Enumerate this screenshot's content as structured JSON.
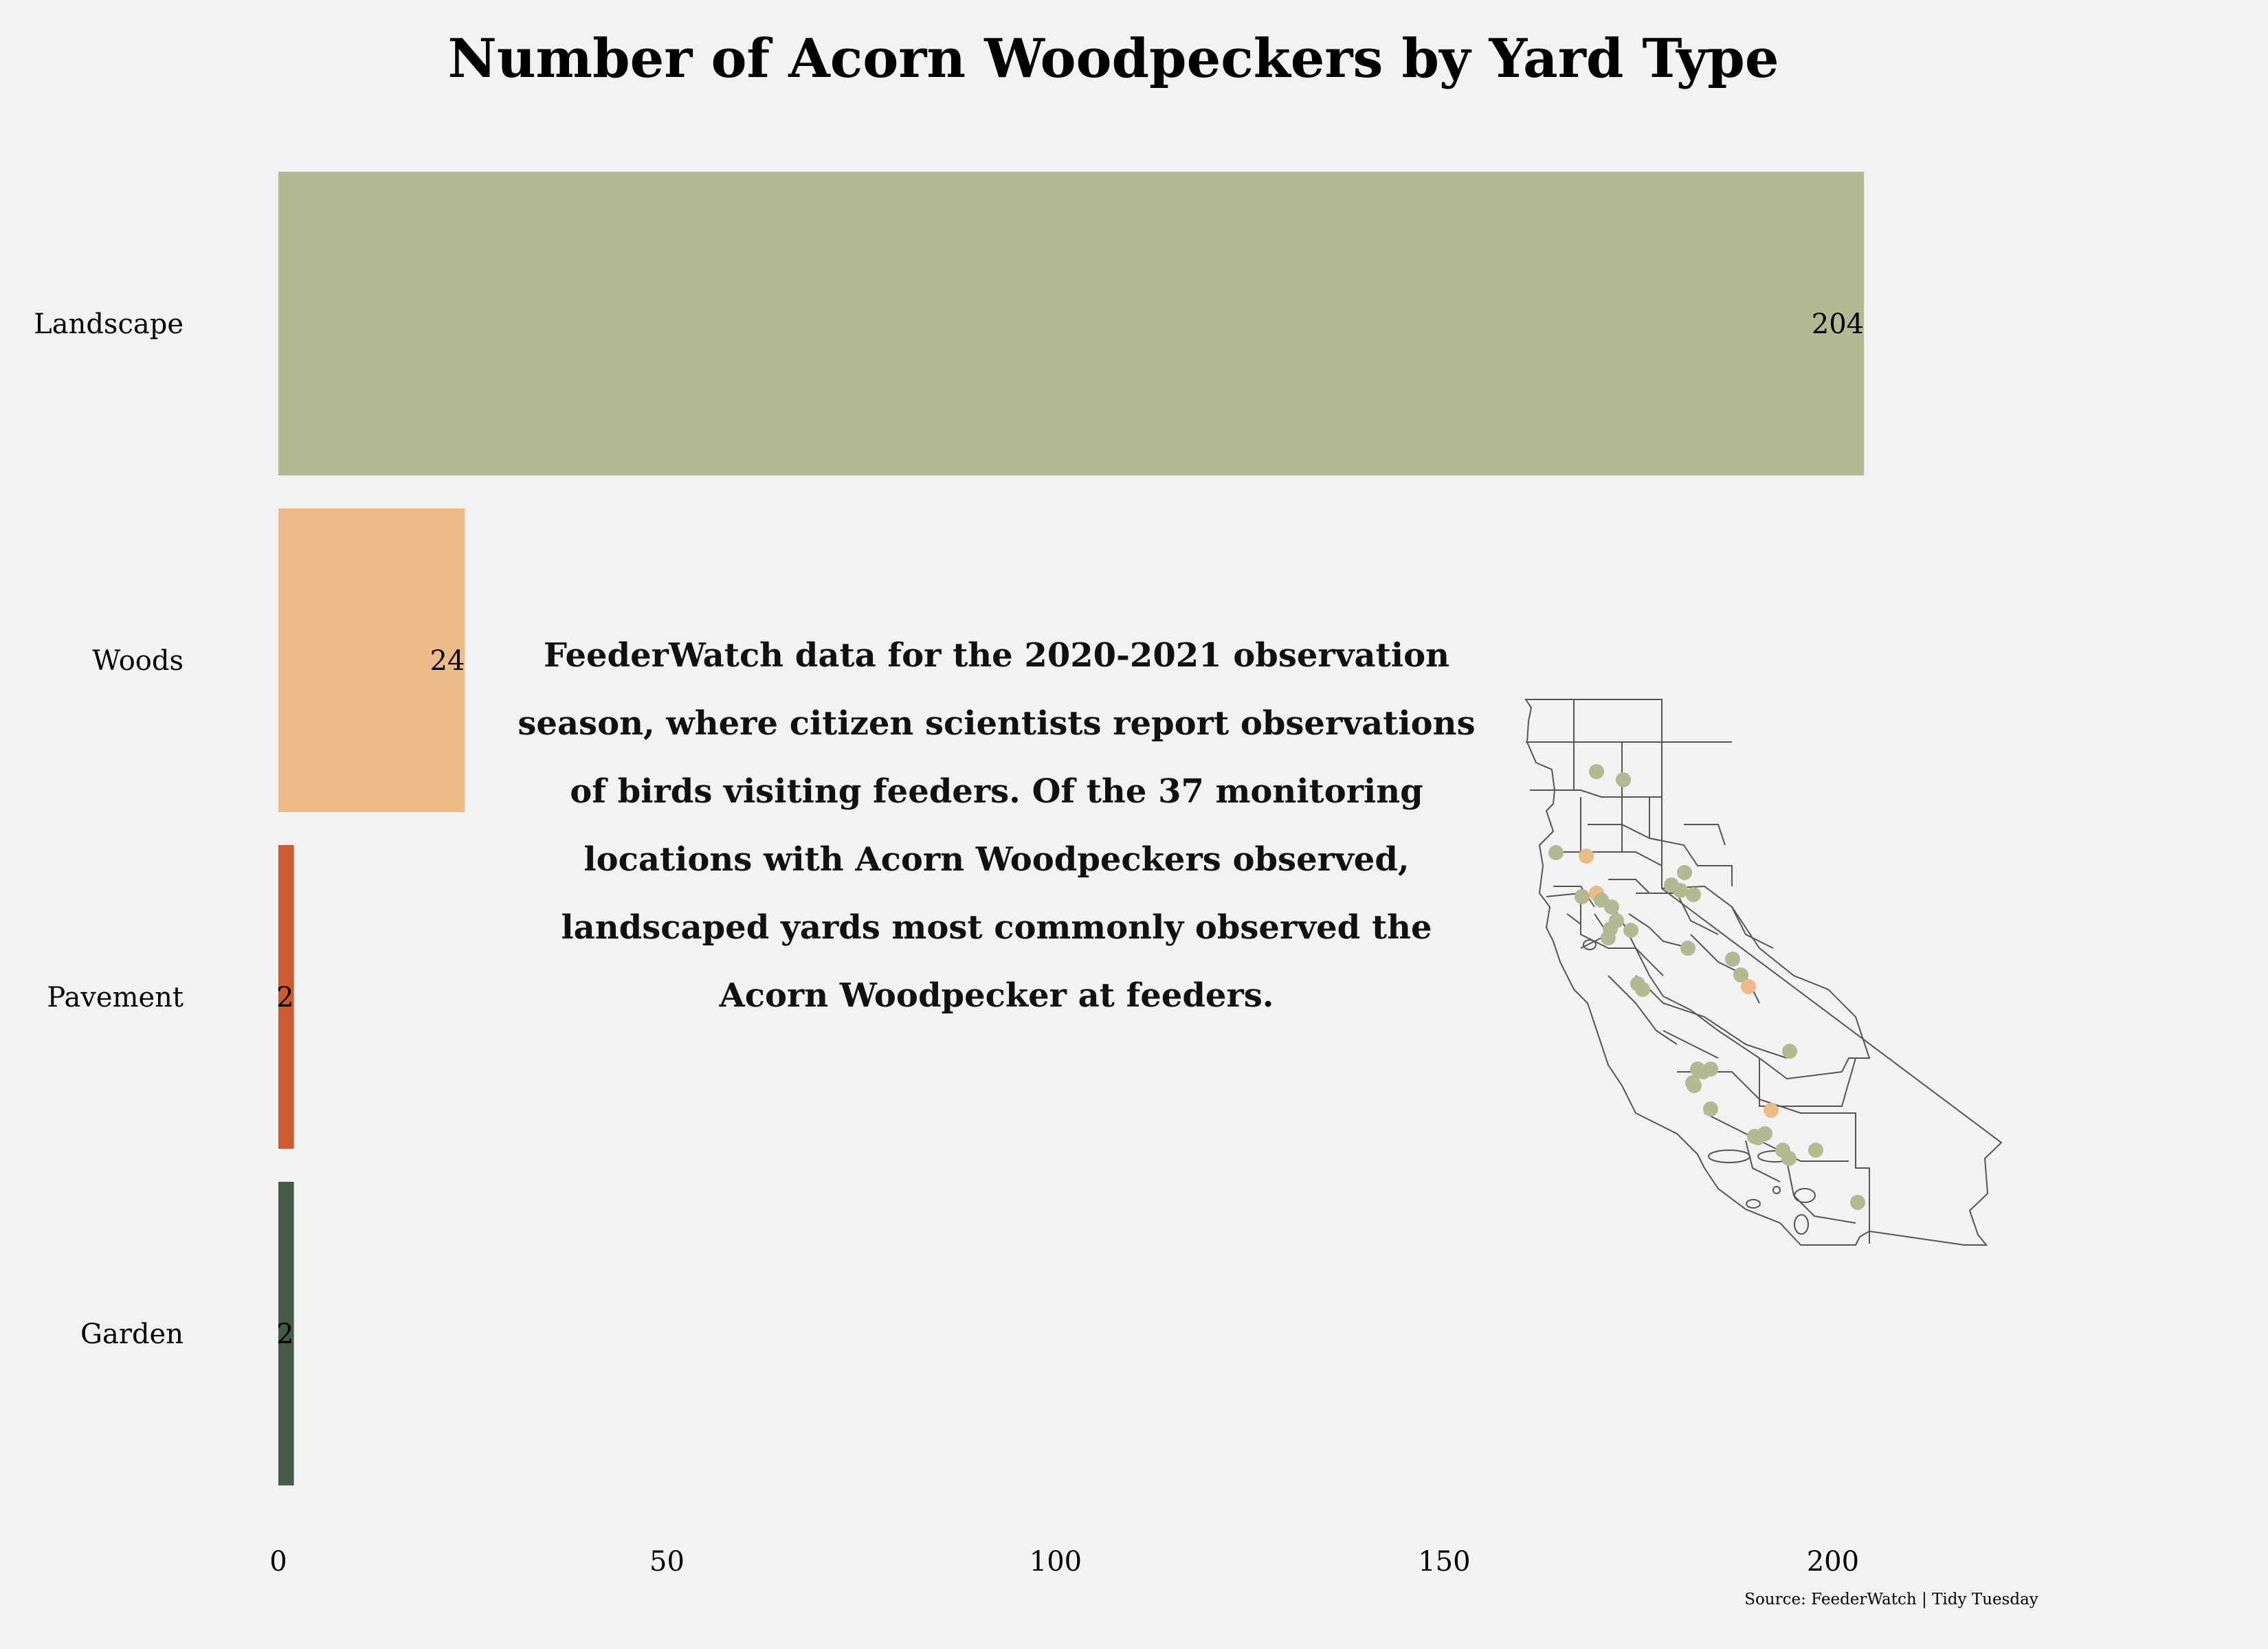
{
  "chart_data": {
    "type": "bar",
    "orientation": "horizontal",
    "title": "Number of Acorn Woodpeckers by Yard Type",
    "categories": [
      "Landscape",
      "Woods",
      "Pavement",
      "Garden"
    ],
    "values": [
      204,
      24,
      2,
      2
    ],
    "colors": [
      "#b3b991",
      "#edbb8a",
      "#d0592e",
      "#445c45"
    ],
    "x_ticks": [
      0,
      50,
      100,
      150,
      200
    ],
    "xlim": [
      0,
      210
    ],
    "grid": false,
    "legend": "none",
    "annotation": "FeederWatch data for the 2020-2021 observation season, where citizen scientists report observations of birds visiting feeders. Of the 37 monitoring locations with Acorn Woodpeckers observed, landscaped yards most commonly observed the Acorn Woodpecker at feeders.",
    "source": "Source: FeederWatch | Tidy Tuesday"
  },
  "colors": {
    "background": "#f2f2f2",
    "map_outline": "#555555"
  }
}
